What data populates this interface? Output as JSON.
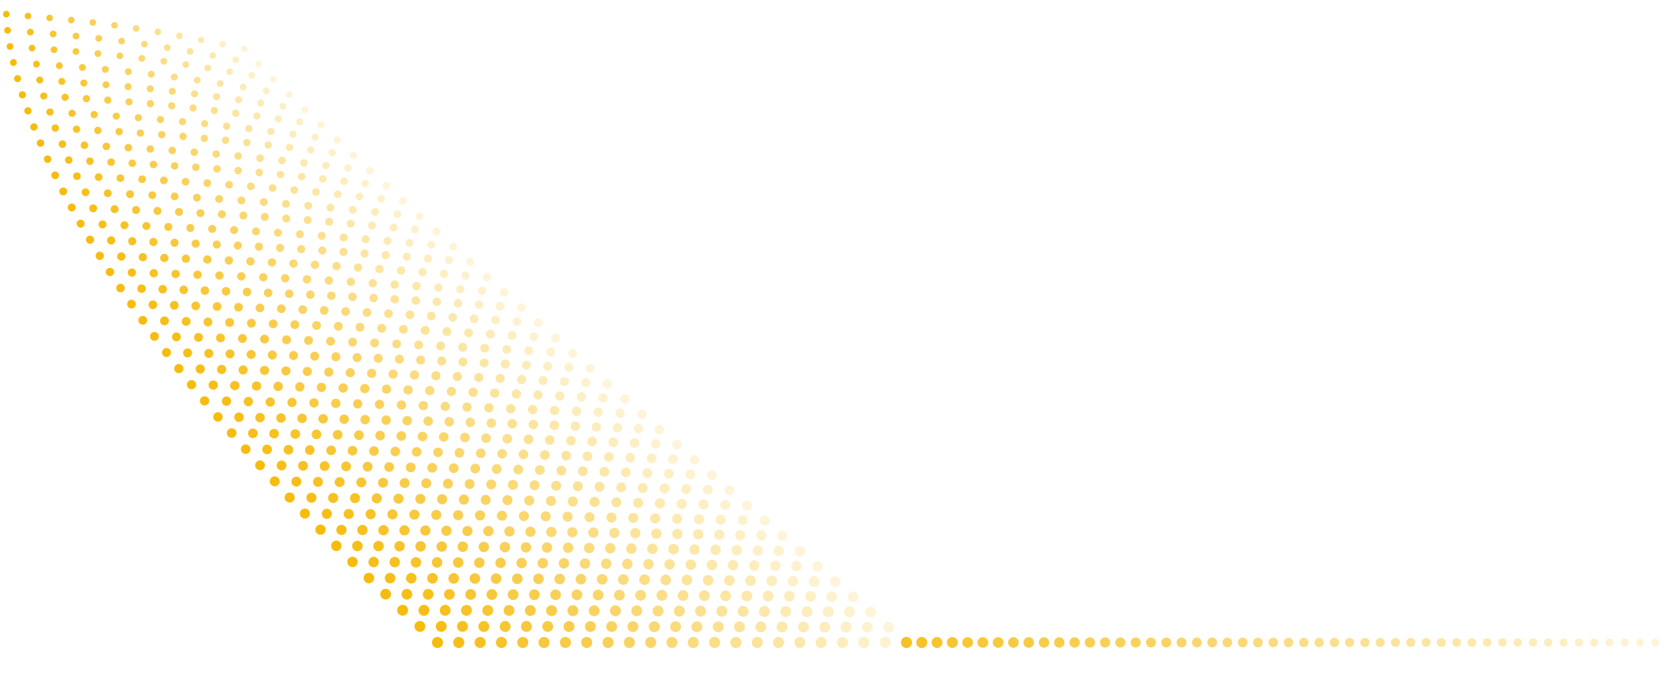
{
  "graphic": {
    "description_name": "dotted-wave-pattern",
    "dot_color": "#F5B800",
    "background_color": "#FFFFFF"
  }
}
